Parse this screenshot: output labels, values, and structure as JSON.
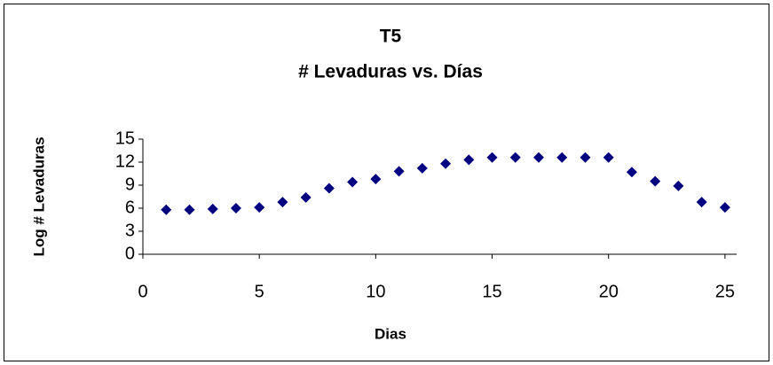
{
  "chart_data": {
    "type": "scatter",
    "title": "T5",
    "subtitle": "# Levaduras vs. Días",
    "x_label": "Dias",
    "y_label": "Log # Levaduras",
    "series": [
      {
        "name": "T5",
        "color": "#000080",
        "x": [
          1,
          2,
          3,
          4,
          5,
          6,
          7,
          8,
          9,
          10,
          11,
          12,
          13,
          14,
          15,
          16,
          17,
          18,
          19,
          20,
          21,
          22,
          23,
          24,
          25
        ],
        "values": [
          5.8,
          5.8,
          5.9,
          6.0,
          6.1,
          6.8,
          7.4,
          8.6,
          9.4,
          9.8,
          10.8,
          11.2,
          11.8,
          12.3,
          12.6,
          12.6,
          12.6,
          12.6,
          12.6,
          12.6,
          10.7,
          9.5,
          8.9,
          6.8,
          6.1
        ]
      }
    ],
    "xlim": [
      0,
      25.5
    ],
    "xticks": [
      0,
      5,
      10,
      15,
      20,
      25
    ],
    "ylim": [
      0,
      15
    ],
    "yticks": [
      0,
      3,
      6,
      9,
      12,
      15
    ]
  }
}
